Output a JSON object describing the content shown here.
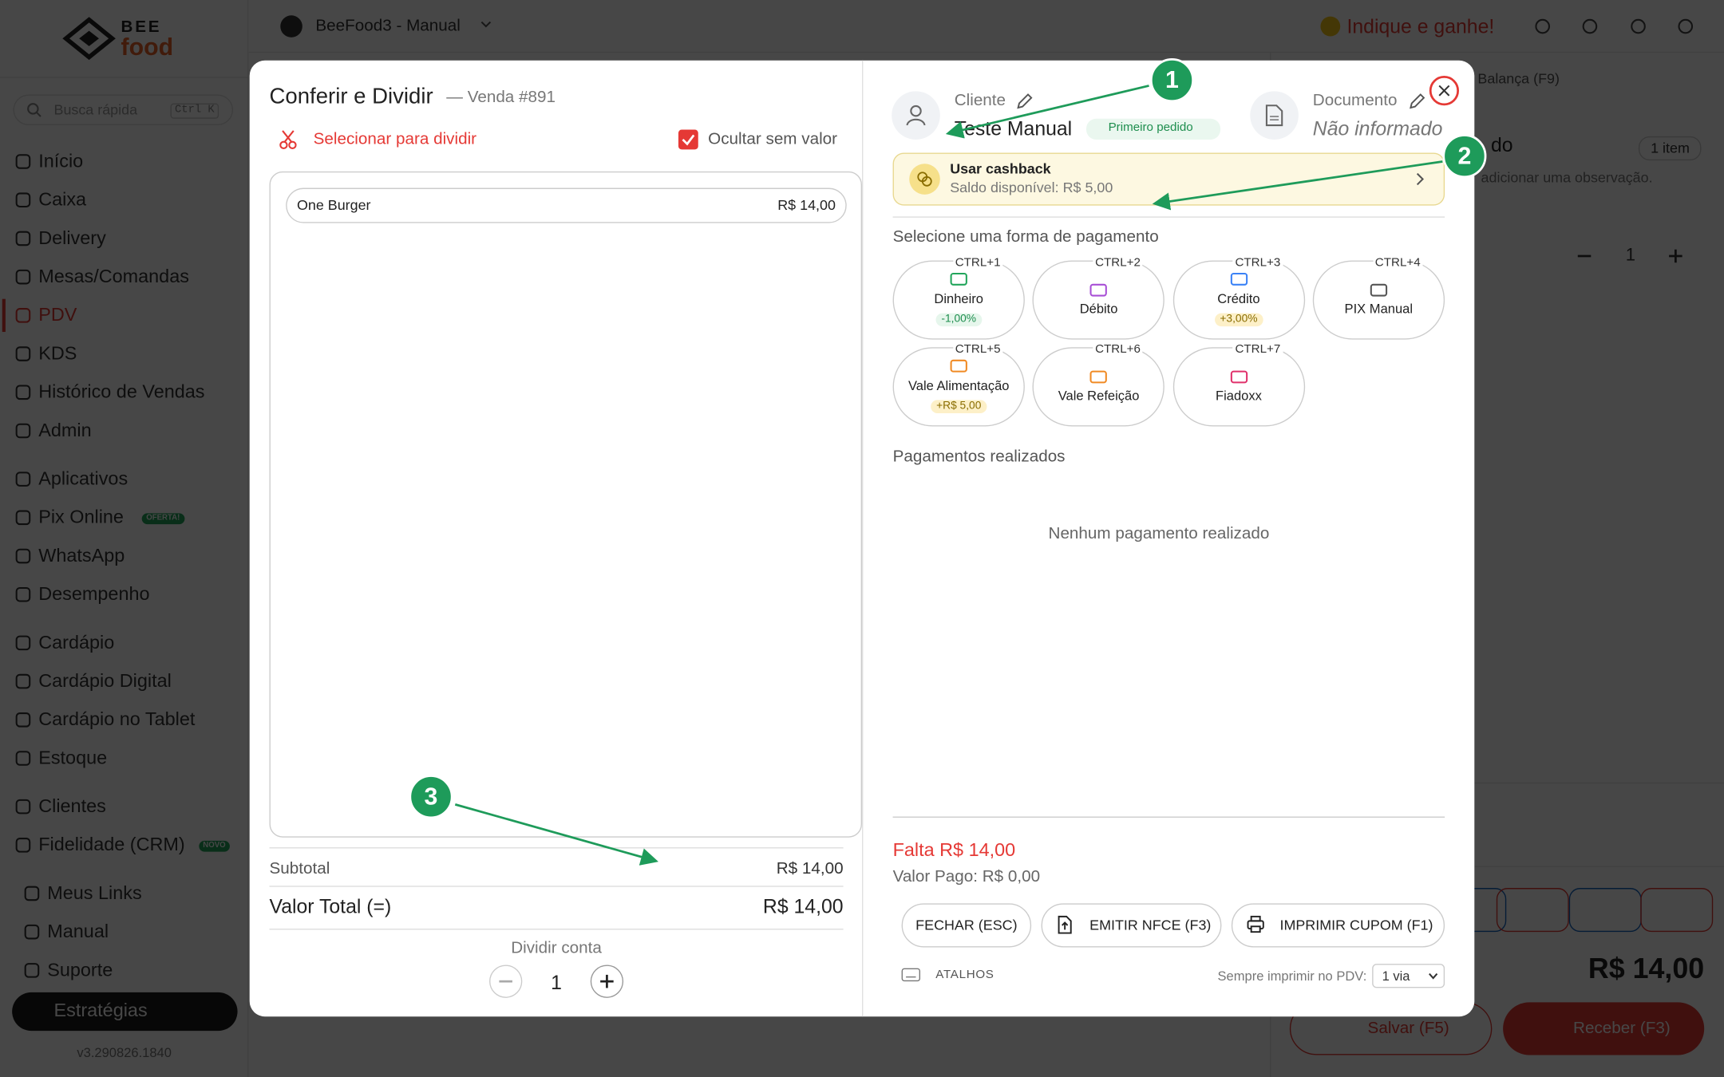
{
  "topbar": {
    "store": "BeeFood3 - Manual",
    "referral": "Indique e ganhe!"
  },
  "sidebar": {
    "logo_top": "BEE",
    "logo_bottom": "food",
    "search": "Busca rápida",
    "search_shortcut": "Ctrl K",
    "groups": [
      [
        {
          "label": "Início"
        },
        {
          "label": "Caixa"
        },
        {
          "label": "Delivery"
        },
        {
          "label": "Mesas/Comandas"
        },
        {
          "label": "PDV",
          "active": true
        },
        {
          "label": "KDS"
        },
        {
          "label": "Histórico de Vendas"
        },
        {
          "label": "Admin"
        }
      ],
      [
        {
          "label": "Aplicativos"
        },
        {
          "label": "Pix Online",
          "badge": "OFERTA!"
        },
        {
          "label": "WhatsApp"
        },
        {
          "label": "Desempenho"
        }
      ],
      [
        {
          "label": "Cardápio"
        },
        {
          "label": "Cardápio Digital"
        },
        {
          "label": "Cardápio no Tablet"
        },
        {
          "label": "Estoque"
        }
      ],
      [
        {
          "label": "Clientes"
        },
        {
          "label": "Fidelidade (CRM)",
          "badge": "NOVO"
        }
      ],
      [
        {
          "label": "Meus Links"
        },
        {
          "label": "Manual"
        },
        {
          "label": "Suporte"
        }
      ]
    ],
    "strategies": "Estratégias",
    "version": "v3.290826.1840"
  },
  "background": {
    "scale_button": "Balança (F9)",
    "items_count": "1 item",
    "title_fragment": "do",
    "note_fragment": "adicionar uma observação.",
    "quantity": "1",
    "total": "R$ 14,00",
    "save": "Salvar (F5)",
    "receive": "Receber (F3)"
  },
  "modal": {
    "left": {
      "title": "Conferir e Dividir",
      "sale": "— Venda #891",
      "select_split": "Selecionar para dividir",
      "hide_zero": "Ocultar sem valor",
      "items": [
        {
          "name": "One Burger",
          "price": "R$ 14,00"
        }
      ],
      "subtotal_label": "Subtotal",
      "subtotal": "R$ 14,00",
      "total_label": "Valor Total (=)",
      "total": "R$ 14,00",
      "split_label": "Dividir conta",
      "split_count": "1"
    },
    "right": {
      "client_label": "Cliente",
      "client_name": "Teste Manual",
      "client_badge": "Primeiro pedido",
      "document_label": "Documento",
      "document_value": "Não informado",
      "cashback_title": "Usar cashback",
      "cashback_balance": "Saldo disponível: R$ 5,00",
      "payment_heading": "Selecione uma forma de pagamento",
      "methods": [
        {
          "name": "Dinheiro",
          "shortcut": "CTRL+1",
          "tag": "-1,00%",
          "color": "#22a55b"
        },
        {
          "name": "Débito",
          "shortcut": "CTRL+2",
          "color": "#a84fd6"
        },
        {
          "name": "Crédito",
          "shortcut": "CTRL+3",
          "tag": "+3,00%",
          "color": "#3b82f6"
        },
        {
          "name": "PIX Manual",
          "shortcut": "CTRL+4",
          "color": "#555555"
        },
        {
          "name": "Vale Alimentação",
          "shortcut": "CTRL+5",
          "tag": "+R$ 5,00",
          "color": "#f08a24"
        },
        {
          "name": "Vale Refeição",
          "shortcut": "CTRL+6",
          "color": "#f08a24"
        },
        {
          "name": "Fiadoxx",
          "shortcut": "CTRL+7",
          "color": "#e0316b"
        }
      ],
      "payments_heading": "Pagamentos realizados",
      "payments_empty": "Nenhum pagamento realizado",
      "remaining": "Falta R$ 14,00",
      "paid": "Valor Pago: R$ 0,00",
      "buttons": [
        "FECHAR (ESC)",
        "EMITIR NFCE (F3)",
        "IMPRIMIR CUPOM (F1)"
      ],
      "shortcuts": "ATALHOS",
      "print_label": "Sempre imprimir no PDV:",
      "print_option": "1 via"
    }
  },
  "annotations": [
    "1",
    "2",
    "3"
  ]
}
